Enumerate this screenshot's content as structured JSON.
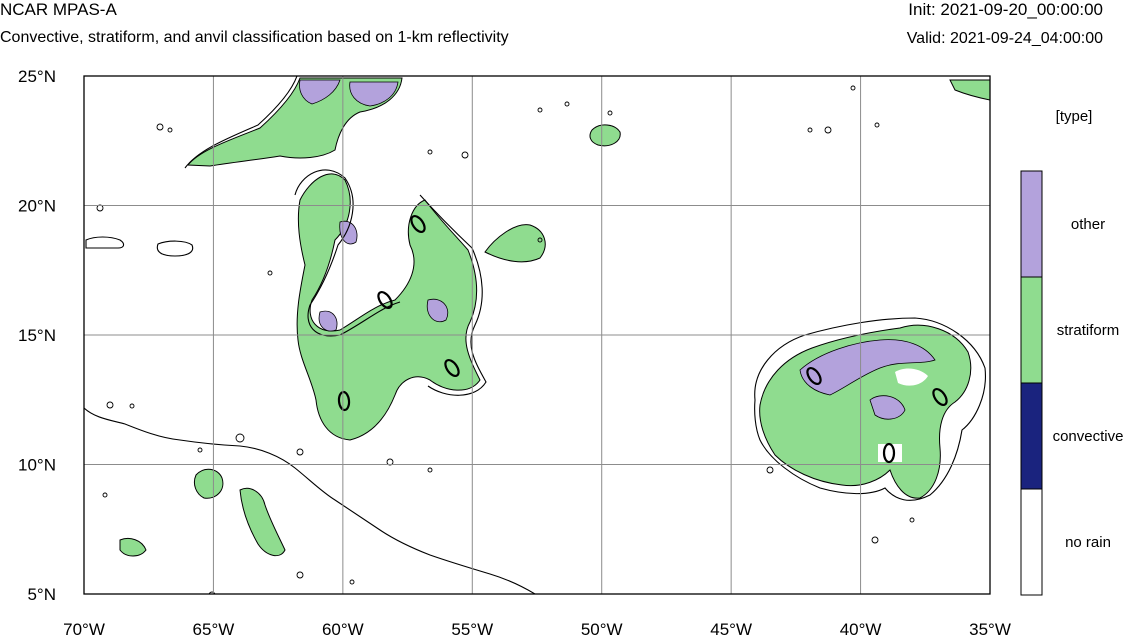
{
  "header": {
    "title": "NCAR MPAS-A",
    "subtitle": "Convective, stratiform, and anvil classification based on 1-km reflectivity",
    "init": "Init: 2021-09-20_00:00:00",
    "valid": "Valid: 2021-09-24_04:00:00"
  },
  "map": {
    "lon_range": [
      -70,
      -35
    ],
    "lat_range": [
      5,
      25
    ],
    "lon_ticks": [
      -70,
      -65,
      -60,
      -55,
      -50,
      -45,
      -40,
      -35
    ],
    "lat_ticks": [
      5,
      10,
      15,
      20,
      25
    ],
    "lon_tick_labels": [
      "70°W",
      "65°W",
      "60°W",
      "55°W",
      "50°W",
      "45°W",
      "40°W",
      "35°W"
    ],
    "lat_tick_labels": [
      "5°N",
      "10°N",
      "15°N",
      "20°N",
      "25°N"
    ],
    "contour_label": "0",
    "grid": true
  },
  "legend": {
    "title": "[type]",
    "items": [
      {
        "label": "other",
        "color": "#b3a2dc"
      },
      {
        "label": "stratiform",
        "color": "#8fdc8f"
      },
      {
        "label": "convective",
        "color": "#1a237e"
      },
      {
        "label": "no rain",
        "color": "#ffffff"
      }
    ]
  },
  "colors": {
    "other": "#b3a2dc",
    "stratiform": "#8fdc8f",
    "convective": "#1a237e",
    "no_rain": "#ffffff",
    "contour": "#000000",
    "grid": "#8c8c8c"
  }
}
